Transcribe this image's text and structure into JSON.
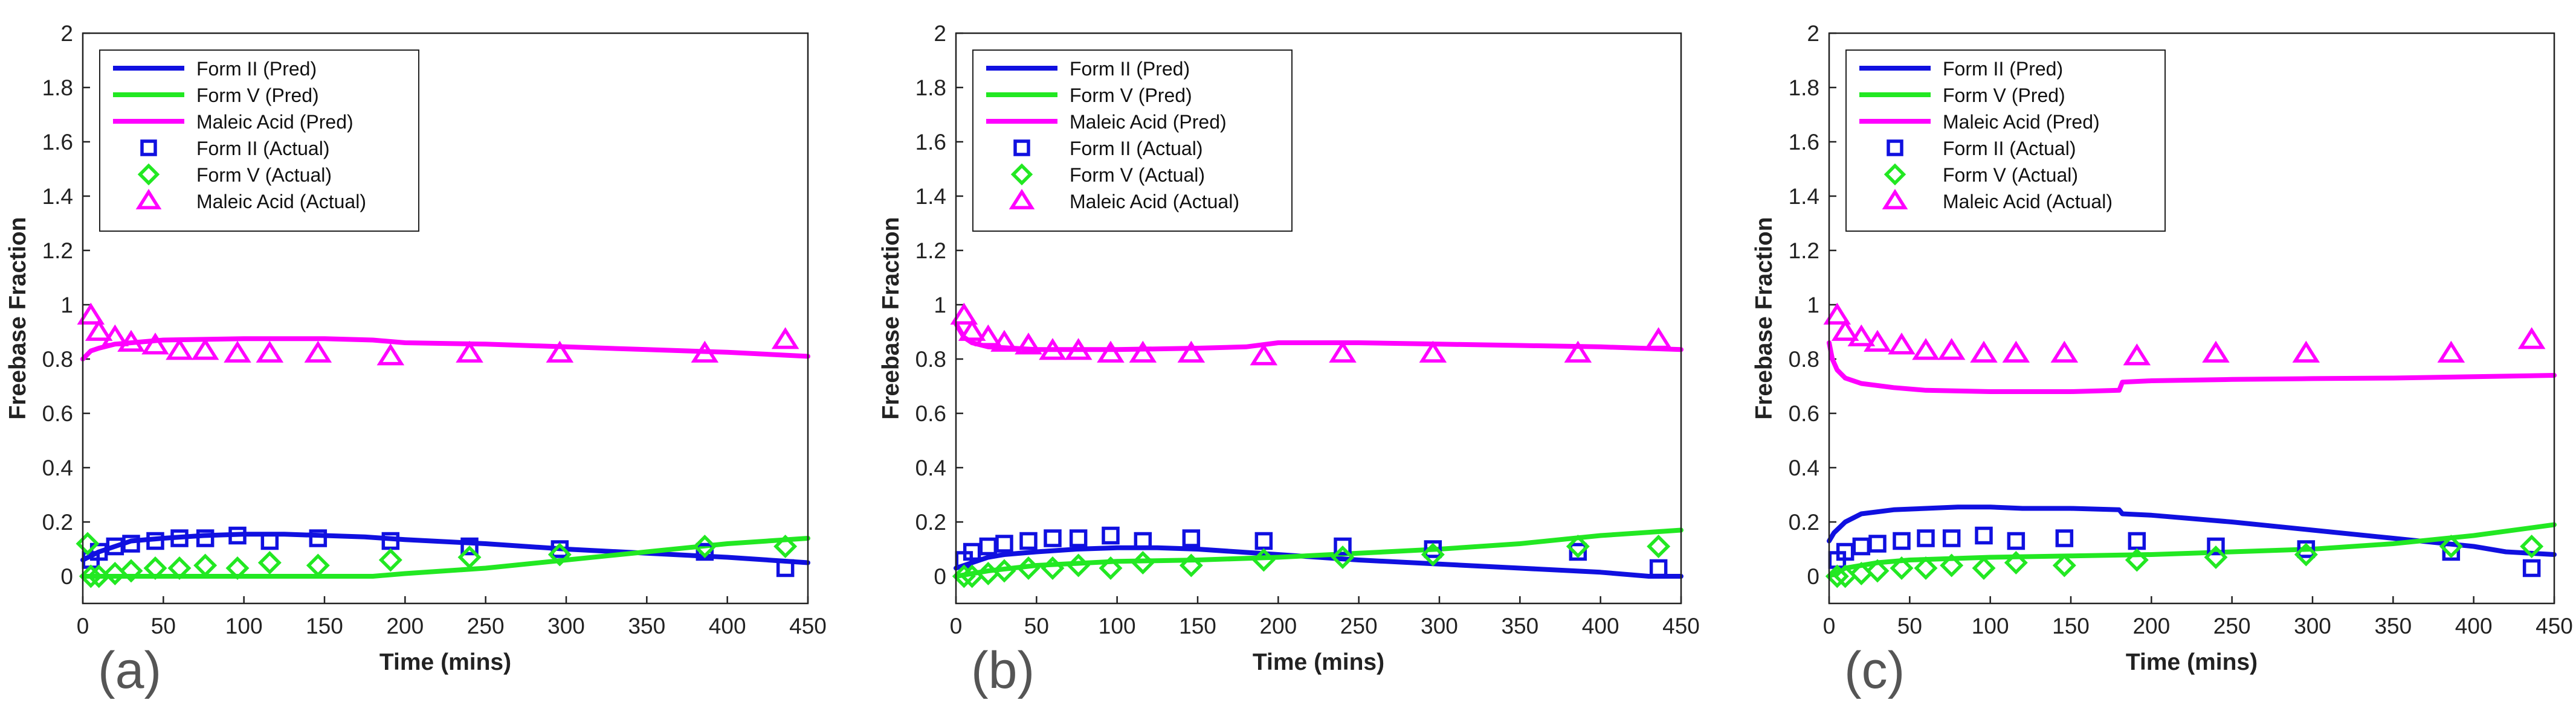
{
  "chart_data": [
    {
      "type": "line",
      "panel_label": "(a)",
      "xlabel": "Time (mins)",
      "ylabel": "Freebase Fraction",
      "xlim": [
        0,
        450
      ],
      "ylim": [
        -0.1,
        2
      ],
      "xticks": [
        0,
        50,
        100,
        150,
        200,
        250,
        300,
        350,
        400,
        450
      ],
      "yticks": [
        0,
        0.2,
        0.4,
        0.6,
        0.8,
        1,
        1.2,
        1.4,
        1.6,
        1.8,
        2
      ],
      "ytick_labels": [
        "0",
        "0.2",
        "0.4",
        "0.6",
        "0.8",
        "1",
        "1.2",
        "1.4",
        "1.6",
        "1.8",
        "2"
      ],
      "legend_position": "top-left",
      "series": [
        {
          "name": "Form II (Pred)",
          "kind": "line",
          "color": "#1010e0",
          "x": [
            0,
            10,
            20,
            30,
            50,
            75,
            100,
            125,
            150,
            175,
            200,
            250,
            300,
            350,
            400,
            450
          ],
          "y": [
            0.06,
            0.09,
            0.11,
            0.13,
            0.14,
            0.15,
            0.155,
            0.155,
            0.15,
            0.145,
            0.135,
            0.12,
            0.1,
            0.085,
            0.07,
            0.05
          ]
        },
        {
          "name": "Form V (Pred)",
          "kind": "line",
          "color": "#22e822",
          "x": [
            0,
            50,
            100,
            150,
            180,
            200,
            250,
            300,
            350,
            400,
            450
          ],
          "y": [
            0.0,
            0.0,
            0.0,
            0.0,
            0.0,
            0.01,
            0.03,
            0.06,
            0.09,
            0.12,
            0.14
          ]
        },
        {
          "name": "Maleic Acid (Pred)",
          "kind": "line",
          "color": "#ff00ff",
          "x": [
            0,
            5,
            10,
            20,
            50,
            100,
            150,
            180,
            200,
            250,
            300,
            350,
            400,
            450
          ],
          "y": [
            0.8,
            0.83,
            0.84,
            0.855,
            0.87,
            0.875,
            0.875,
            0.87,
            0.86,
            0.855,
            0.845,
            0.835,
            0.825,
            0.81
          ]
        },
        {
          "name": "Form II (Actual)",
          "kind": "square",
          "color": "#1010e0",
          "x": [
            5,
            10,
            20,
            30,
            45,
            60,
            76,
            96,
            116,
            146,
            191,
            240,
            296,
            386,
            436
          ],
          "y": [
            0.06,
            0.09,
            0.11,
            0.12,
            0.13,
            0.14,
            0.14,
            0.15,
            0.13,
            0.14,
            0.13,
            0.11,
            0.1,
            0.09,
            0.03
          ]
        },
        {
          "name": "Form V (Actual)",
          "kind": "diamond",
          "color": "#22e822",
          "x": [
            3,
            5,
            10,
            20,
            30,
            45,
            60,
            76,
            96,
            116,
            146,
            191,
            240,
            296,
            386,
            436
          ],
          "y": [
            0.12,
            0.0,
            0.0,
            0.01,
            0.02,
            0.03,
            0.03,
            0.04,
            0.03,
            0.05,
            0.04,
            0.06,
            0.07,
            0.08,
            0.11,
            0.11
          ]
        },
        {
          "name": "Maleic Acid (Actual)",
          "kind": "triangle",
          "color": "#ff00ff",
          "x": [
            5,
            10,
            20,
            30,
            45,
            60,
            76,
            96,
            116,
            146,
            191,
            240,
            296,
            386,
            436
          ],
          "y": [
            0.96,
            0.9,
            0.88,
            0.86,
            0.85,
            0.83,
            0.83,
            0.82,
            0.82,
            0.82,
            0.81,
            0.82,
            0.82,
            0.82,
            0.87
          ]
        }
      ]
    },
    {
      "type": "line",
      "panel_label": "(b)",
      "xlabel": "Time (mins)",
      "ylabel": "Freebase Fraction",
      "xlim": [
        0,
        450
      ],
      "ylim": [
        -0.1,
        2
      ],
      "xticks": [
        0,
        50,
        100,
        150,
        200,
        250,
        300,
        350,
        400,
        450
      ],
      "yticks": [
        0,
        0.2,
        0.4,
        0.6,
        0.8,
        1,
        1.2,
        1.4,
        1.6,
        1.8,
        2
      ],
      "ytick_labels": [
        "0",
        "0.2",
        "0.4",
        "0.6",
        "0.8",
        "1",
        "1.2",
        "1.4",
        "1.6",
        "1.8",
        "2"
      ],
      "legend_position": "top-left",
      "series": [
        {
          "name": "Form II (Pred)",
          "kind": "line",
          "color": "#1010e0",
          "x": [
            0,
            10,
            20,
            30,
            50,
            75,
            100,
            125,
            150,
            175,
            200,
            250,
            300,
            350,
            400,
            430,
            450
          ],
          "y": [
            0.03,
            0.05,
            0.07,
            0.08,
            0.09,
            0.1,
            0.105,
            0.105,
            0.1,
            0.09,
            0.08,
            0.06,
            0.045,
            0.03,
            0.015,
            0.0,
            0.0
          ]
        },
        {
          "name": "Form V (Pred)",
          "kind": "line",
          "color": "#22e822",
          "x": [
            0,
            10,
            20,
            50,
            100,
            150,
            200,
            250,
            300,
            350,
            400,
            450
          ],
          "y": [
            0.0,
            0.01,
            0.02,
            0.04,
            0.055,
            0.06,
            0.07,
            0.085,
            0.1,
            0.12,
            0.15,
            0.17
          ]
        },
        {
          "name": "Maleic Acid (Pred)",
          "kind": "line",
          "color": "#ff00ff",
          "x": [
            0,
            5,
            10,
            20,
            50,
            100,
            150,
            180,
            200,
            250,
            300,
            350,
            400,
            450
          ],
          "y": [
            0.93,
            0.88,
            0.86,
            0.845,
            0.835,
            0.835,
            0.84,
            0.845,
            0.86,
            0.86,
            0.855,
            0.85,
            0.845,
            0.835
          ]
        },
        {
          "name": "Form II (Actual)",
          "kind": "square",
          "color": "#1010e0",
          "x": [
            5,
            10,
            20,
            30,
            45,
            60,
            76,
            96,
            116,
            146,
            191,
            240,
            296,
            386,
            436
          ],
          "y": [
            0.06,
            0.09,
            0.11,
            0.12,
            0.13,
            0.14,
            0.14,
            0.15,
            0.13,
            0.14,
            0.13,
            0.11,
            0.1,
            0.09,
            0.03
          ]
        },
        {
          "name": "Form V (Actual)",
          "kind": "diamond",
          "color": "#22e822",
          "x": [
            5,
            10,
            20,
            30,
            45,
            60,
            76,
            96,
            116,
            146,
            191,
            240,
            296,
            386,
            436
          ],
          "y": [
            0.0,
            0.0,
            0.01,
            0.02,
            0.03,
            0.03,
            0.04,
            0.03,
            0.05,
            0.04,
            0.06,
            0.07,
            0.08,
            0.11,
            0.11
          ]
        },
        {
          "name": "Maleic Acid (Actual)",
          "kind": "triangle",
          "color": "#ff00ff",
          "x": [
            5,
            10,
            20,
            30,
            45,
            60,
            76,
            96,
            116,
            146,
            191,
            240,
            296,
            386,
            436
          ],
          "y": [
            0.96,
            0.9,
            0.88,
            0.86,
            0.85,
            0.83,
            0.83,
            0.82,
            0.82,
            0.82,
            0.81,
            0.82,
            0.82,
            0.82,
            0.87
          ]
        }
      ]
    },
    {
      "type": "line",
      "panel_label": "(c)",
      "xlabel": "Time (mins)",
      "ylabel": "Freebase Fraction",
      "xlim": [
        0,
        450
      ],
      "ylim": [
        -0.1,
        2
      ],
      "xticks": [
        0,
        50,
        100,
        150,
        200,
        250,
        300,
        350,
        400,
        450
      ],
      "yticks": [
        0,
        0.2,
        0.4,
        0.6,
        0.8,
        1,
        1.2,
        1.4,
        1.6,
        1.8,
        2
      ],
      "ytick_labels": [
        "0",
        "0.2",
        "0.4",
        "0.6",
        "0.8",
        "1",
        "1.2",
        "1.4",
        "1.6",
        "1.8",
        "2"
      ],
      "legend_position": "top-left",
      "series": [
        {
          "name": "Form II (Pred)",
          "kind": "line",
          "color": "#1010e0",
          "x": [
            0,
            3,
            10,
            20,
            40,
            60,
            80,
            100,
            120,
            150,
            180,
            182,
            200,
            250,
            300,
            350,
            400,
            420,
            450
          ],
          "y": [
            0.13,
            0.16,
            0.2,
            0.23,
            0.245,
            0.25,
            0.255,
            0.255,
            0.25,
            0.25,
            0.245,
            0.23,
            0.225,
            0.2,
            0.17,
            0.14,
            0.11,
            0.09,
            0.08
          ]
        },
        {
          "name": "Form V (Pred)",
          "kind": "line",
          "color": "#22e822",
          "x": [
            0,
            10,
            30,
            50,
            100,
            150,
            200,
            250,
            300,
            350,
            400,
            450
          ],
          "y": [
            0.0,
            0.03,
            0.05,
            0.06,
            0.07,
            0.075,
            0.08,
            0.09,
            0.1,
            0.12,
            0.15,
            0.19
          ]
        },
        {
          "name": "Maleic Acid (Pred)",
          "kind": "line",
          "color": "#ff00ff",
          "x": [
            0,
            2,
            5,
            10,
            20,
            40,
            60,
            100,
            150,
            180,
            182,
            200,
            250,
            300,
            350,
            400,
            450
          ],
          "y": [
            0.86,
            0.8,
            0.76,
            0.73,
            0.71,
            0.695,
            0.685,
            0.68,
            0.68,
            0.685,
            0.715,
            0.72,
            0.725,
            0.728,
            0.73,
            0.735,
            0.74
          ]
        },
        {
          "name": "Form II (Actual)",
          "kind": "square",
          "color": "#1010e0",
          "x": [
            5,
            10,
            20,
            30,
            45,
            60,
            76,
            96,
            116,
            146,
            191,
            240,
            296,
            386,
            436
          ],
          "y": [
            0.06,
            0.09,
            0.11,
            0.12,
            0.13,
            0.14,
            0.14,
            0.15,
            0.13,
            0.14,
            0.13,
            0.11,
            0.1,
            0.09,
            0.03
          ]
        },
        {
          "name": "Form V (Actual)",
          "kind": "diamond",
          "color": "#22e822",
          "x": [
            5,
            10,
            20,
            30,
            45,
            60,
            76,
            96,
            116,
            146,
            191,
            240,
            296,
            386,
            436
          ],
          "y": [
            0.0,
            0.0,
            0.01,
            0.02,
            0.03,
            0.03,
            0.04,
            0.03,
            0.05,
            0.04,
            0.06,
            0.07,
            0.08,
            0.11,
            0.11
          ]
        },
        {
          "name": "Maleic Acid (Actual)",
          "kind": "triangle",
          "color": "#ff00ff",
          "x": [
            5,
            10,
            20,
            30,
            45,
            60,
            76,
            96,
            116,
            146,
            191,
            240,
            296,
            386,
            436
          ],
          "y": [
            0.96,
            0.9,
            0.88,
            0.86,
            0.85,
            0.83,
            0.83,
            0.82,
            0.82,
            0.82,
            0.81,
            0.82,
            0.82,
            0.82,
            0.87
          ]
        }
      ]
    }
  ]
}
